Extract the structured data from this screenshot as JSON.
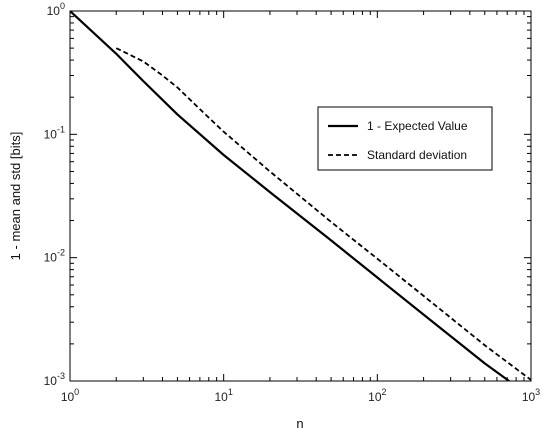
{
  "chart_data": {
    "type": "line",
    "xscale": "log",
    "yscale": "log",
    "xlabel": "n",
    "ylabel": "1 - mean  and  std  [bits]",
    "xlim": [
      1,
      1000
    ],
    "ylim": [
      0.001,
      1
    ],
    "grid": false,
    "legend_position": "upper-right",
    "xticks": [
      {
        "base": "10",
        "exp": "0",
        "value": 1
      },
      {
        "base": "10",
        "exp": "1",
        "value": 10
      },
      {
        "base": "10",
        "exp": "2",
        "value": 100
      },
      {
        "base": "10",
        "exp": "3",
        "value": 1000
      }
    ],
    "yticks": [
      {
        "base": "10",
        "exp": "-3",
        "value": 0.001
      },
      {
        "base": "10",
        "exp": "-2",
        "value": 0.01
      },
      {
        "base": "10",
        "exp": "-1",
        "value": 0.1
      },
      {
        "base": "10",
        "exp": "0",
        "value": 1
      }
    ],
    "series": [
      {
        "name": "1 - Expected Value",
        "style": "solid",
        "color": "#000000",
        "x": [
          1,
          2,
          3,
          5,
          10,
          20,
          50,
          100,
          200,
          500,
          720
        ],
        "y": [
          1,
          0.45,
          0.27,
          0.145,
          0.068,
          0.034,
          0.0138,
          0.0069,
          0.00345,
          0.00139,
          0.001
        ]
      },
      {
        "name": "Standard deviation",
        "style": "dashed",
        "color": "#000000",
        "x": [
          2,
          3,
          4,
          5,
          7,
          10,
          20,
          50,
          100,
          200,
          500,
          1000
        ],
        "y": [
          0.5,
          0.39,
          0.3,
          0.24,
          0.16,
          0.105,
          0.05,
          0.0195,
          0.0098,
          0.0049,
          0.00195,
          0.00102
        ]
      }
    ]
  }
}
